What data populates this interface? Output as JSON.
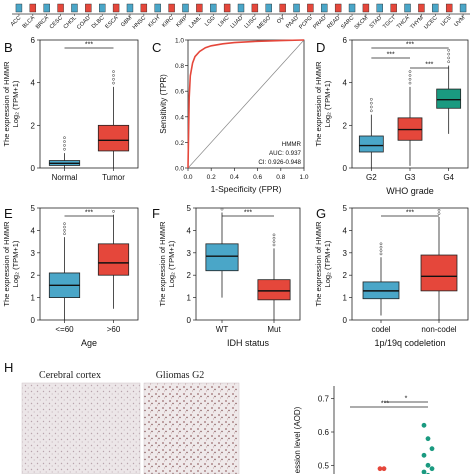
{
  "colors": {
    "normal": "#4aa6c8",
    "tumor": "#e5473b",
    "g2": "#4aa6c8",
    "g3": "#e5473b",
    "g4": "#1a9a80",
    "roc": "#e5473b"
  },
  "top_strip": {
    "tick_labels": [
      "ACC",
      "BLCA",
      "BRCA",
      "CESC",
      "CHOL",
      "COAD",
      "DLBC",
      "ESCA",
      "GBM",
      "HNSC",
      "KICH",
      "KIRC",
      "KIRP",
      "LAML",
      "LGG",
      "LIHC",
      "LUAD",
      "LUSC",
      "MESO",
      "OV",
      "PAAD",
      "PCPG",
      "PRAD",
      "READ",
      "SARC",
      "SKCM",
      "STAD",
      "TGCT",
      "THCA",
      "THYM",
      "UCEC",
      "UCS",
      "UVM"
    ]
  },
  "panels": {
    "B": {
      "letter": "B"
    },
    "C": {
      "letter": "C"
    },
    "D": {
      "letter": "D"
    },
    "E": {
      "letter": "E"
    },
    "F": {
      "letter": "F"
    },
    "G": {
      "letter": "G"
    },
    "H": {
      "letter": "H"
    }
  },
  "chart_data": [
    {
      "id": "B",
      "type": "box",
      "ylabel_line1": "The expression of HMMR",
      "ylabel_line2": "Log₂ (TPM+1)",
      "xlabel": "",
      "ylim": [
        0,
        6
      ],
      "yticks": [
        0,
        2,
        4,
        6
      ],
      "categories": [
        "Normal",
        "Tumor"
      ],
      "boxes": [
        {
          "q1": 0.12,
          "median": 0.22,
          "q3": 0.35,
          "wlo": 0.0,
          "whi": 0.7,
          "color_key": "normal"
        },
        {
          "q1": 0.8,
          "median": 1.3,
          "q3": 2.0,
          "wlo": 0.0,
          "whi": 3.8,
          "color_key": "tumor"
        }
      ],
      "significance": [
        {
          "from": 0,
          "to": 1,
          "label": "***"
        }
      ]
    },
    {
      "id": "C",
      "type": "line",
      "xlabel": "1-Specificity (FPR)",
      "ylabel": "Sensitivity (TPR)",
      "xlim": [
        0,
        1
      ],
      "ylim": [
        0,
        1
      ],
      "xticks": [
        "0.0",
        "0.2",
        "0.4",
        "0.6",
        "0.8",
        "1.0"
      ],
      "yticks": [
        "0.0",
        "0.2",
        "0.4",
        "0.6",
        "0.8",
        "1.0"
      ],
      "x": [
        0,
        0.01,
        0.02,
        0.04,
        0.06,
        0.1,
        0.15,
        0.2,
        0.3,
        0.4,
        0.6,
        0.8,
        1.0
      ],
      "y": [
        0,
        0.55,
        0.72,
        0.82,
        0.87,
        0.91,
        0.94,
        0.955,
        0.97,
        0.98,
        0.99,
        0.995,
        1.0
      ],
      "annotation": [
        "HMMR",
        "AUC: 0.937",
        "CI: 0.926-0.948"
      ]
    },
    {
      "id": "D",
      "type": "box",
      "ylabel_line1": "The expression of HMMR",
      "ylabel_line2": "Log₂ (TPM+1)",
      "xlabel": "WHO grade",
      "ylim": [
        0,
        6
      ],
      "yticks": [
        0,
        2,
        4,
        6
      ],
      "categories": [
        "G2",
        "G3",
        "G4"
      ],
      "boxes": [
        {
          "q1": 0.75,
          "median": 1.05,
          "q3": 1.5,
          "wlo": 0.0,
          "whi": 2.5,
          "color_key": "g2"
        },
        {
          "q1": 1.3,
          "median": 1.8,
          "q3": 2.35,
          "wlo": 0.1,
          "whi": 3.8,
          "color_key": "g3"
        },
        {
          "q1": 2.8,
          "median": 3.2,
          "q3": 3.7,
          "wlo": 1.6,
          "whi": 4.8,
          "color_key": "g4"
        }
      ],
      "significance": [
        {
          "from": 0,
          "to": 2,
          "label": "***"
        },
        {
          "from": 0,
          "to": 1,
          "label": "***"
        },
        {
          "from": 1,
          "to": 2,
          "label": "***"
        }
      ]
    },
    {
      "id": "E",
      "type": "box",
      "ylabel_line1": "The expression of HMMR",
      "ylabel_line2": "Log₂ (TPM+1)",
      "xlabel": "Age",
      "ylim": [
        0,
        5
      ],
      "yticks": [
        0,
        1,
        2,
        3,
        4,
        5
      ],
      "categories": [
        "<=60",
        ">60"
      ],
      "boxes": [
        {
          "q1": 1.0,
          "median": 1.55,
          "q3": 2.1,
          "wlo": 0.0,
          "whi": 3.7,
          "color_key": "normal"
        },
        {
          "q1": 2.0,
          "median": 2.55,
          "q3": 3.4,
          "wlo": 0.5,
          "whi": 4.7,
          "color_key": "tumor"
        }
      ],
      "significance": [
        {
          "from": 0,
          "to": 1,
          "label": "***"
        }
      ]
    },
    {
      "id": "F",
      "type": "box",
      "ylabel_line1": "The expression of HMMR",
      "ylabel_line2": "Log₂ (TPM+1)",
      "xlabel": "IDH status",
      "ylim": [
        0,
        5
      ],
      "yticks": [
        0,
        1,
        2,
        3,
        4,
        5
      ],
      "categories": [
        "WT",
        "Mut"
      ],
      "boxes": [
        {
          "q1": 2.2,
          "median": 2.85,
          "q3": 3.4,
          "wlo": 1.0,
          "whi": 4.8,
          "color_key": "normal"
        },
        {
          "q1": 0.9,
          "median": 1.3,
          "q3": 1.8,
          "wlo": 0.0,
          "whi": 3.2,
          "color_key": "tumor"
        }
      ],
      "significance": [
        {
          "from": 0,
          "to": 1,
          "label": "***"
        }
      ]
    },
    {
      "id": "G",
      "type": "box",
      "ylabel_line1": "The expression of HMMR",
      "ylabel_line2": "Log₂ (TPM+1)",
      "xlabel": "1p/19q codeletion",
      "ylim": [
        0,
        5
      ],
      "yticks": [
        0,
        1,
        2,
        3,
        4,
        5
      ],
      "categories": [
        "codel",
        "non-codel"
      ],
      "boxes": [
        {
          "q1": 0.95,
          "median": 1.3,
          "q3": 1.7,
          "wlo": 0.2,
          "whi": 2.8,
          "color_key": "normal"
        },
        {
          "q1": 1.3,
          "median": 1.95,
          "q3": 2.9,
          "wlo": 0.0,
          "whi": 4.6,
          "color_key": "tumor"
        }
      ],
      "significance": [
        {
          "from": 0,
          "to": 1,
          "label": "***"
        }
      ]
    },
    {
      "id": "H_dot",
      "type": "scatter",
      "ylabel": "ession level (AOD)",
      "yticks": [
        "0.7",
        "0.6",
        "0.5"
      ],
      "ylim": [
        0.45,
        0.72
      ],
      "groups": [
        {
          "color": "#e5473b",
          "points": [
            0.49,
            0.49
          ]
        },
        {
          "color": "#1a9a80",
          "points": [
            0.62,
            0.58,
            0.55,
            0.53,
            0.5,
            0.49,
            0.48,
            0.47
          ]
        }
      ],
      "significance": [
        {
          "label": "***"
        },
        {
          "label": "*"
        }
      ]
    }
  ],
  "micrographs": {
    "left_title": "Cerebral cortex",
    "right_title": "Gliomas G2"
  }
}
